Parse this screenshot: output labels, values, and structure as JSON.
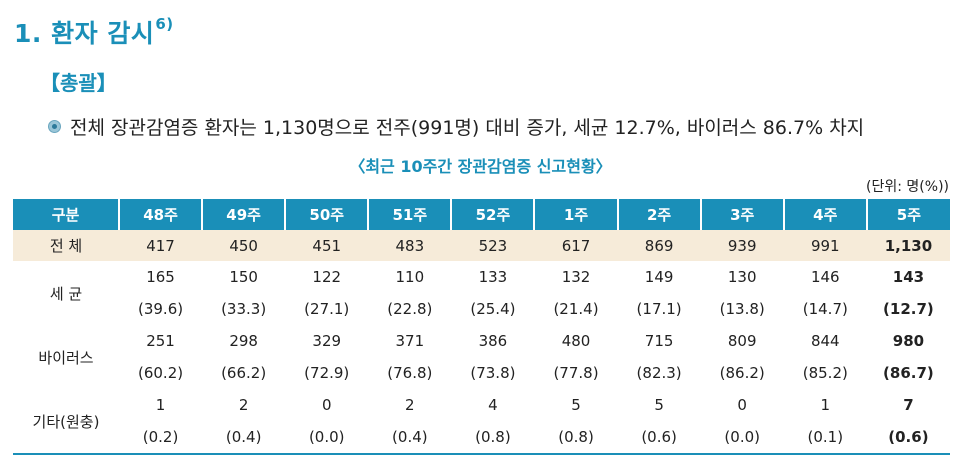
{
  "heading": {
    "number": "1.",
    "title": "환자 감시",
    "footnote": "6)"
  },
  "subheading": "【총괄】",
  "summary": "전체 장관감염증 환자는 1,130명으로 전주(991명) 대비 증가, 세균 12.7%, 바이러스 86.7% 차지",
  "table_title": "〈최근 10주간 장관감염증 신고현황〉",
  "unit": "(단위: 명(%))",
  "table": {
    "columns": [
      "구분",
      "48주",
      "49주",
      "50주",
      "51주",
      "52주",
      "1주",
      "2주",
      "3주",
      "4주",
      "5주"
    ],
    "total": {
      "label": "전 체",
      "values": [
        "417",
        "450",
        "451",
        "483",
        "523",
        "617",
        "869",
        "939",
        "991",
        "1,130"
      ]
    },
    "groups": [
      {
        "label": "세 균",
        "counts": [
          "165",
          "150",
          "122",
          "110",
          "133",
          "132",
          "149",
          "130",
          "146",
          "143"
        ],
        "percents": [
          "(39.6)",
          "(33.3)",
          "(27.1)",
          "(22.8)",
          "(25.4)",
          "(21.4)",
          "(17.1)",
          "(13.8)",
          "(14.7)",
          "(12.7)"
        ]
      },
      {
        "label": "바이러스",
        "counts": [
          "251",
          "298",
          "329",
          "371",
          "386",
          "480",
          "715",
          "809",
          "844",
          "980"
        ],
        "percents": [
          "(60.2)",
          "(66.2)",
          "(72.9)",
          "(76.8)",
          "(73.8)",
          "(77.8)",
          "(82.3)",
          "(86.2)",
          "(85.2)",
          "(86.7)"
        ]
      },
      {
        "label": "기타(원충)",
        "counts": [
          "1",
          "2",
          "0",
          "2",
          "4",
          "5",
          "5",
          "0",
          "1",
          "7"
        ],
        "percents": [
          "(0.2)",
          "(0.4)",
          "(0.0)",
          "(0.4)",
          "(0.8)",
          "(0.8)",
          "(0.6)",
          "(0.0)",
          "(0.1)",
          "(0.6)"
        ]
      }
    ]
  },
  "colors": {
    "accent": "#1a8fb8",
    "total_row_bg": "#f6ebd9",
    "header_text": "#ffffff"
  },
  "icons": {
    "bullet": "circle-bullet-icon"
  }
}
